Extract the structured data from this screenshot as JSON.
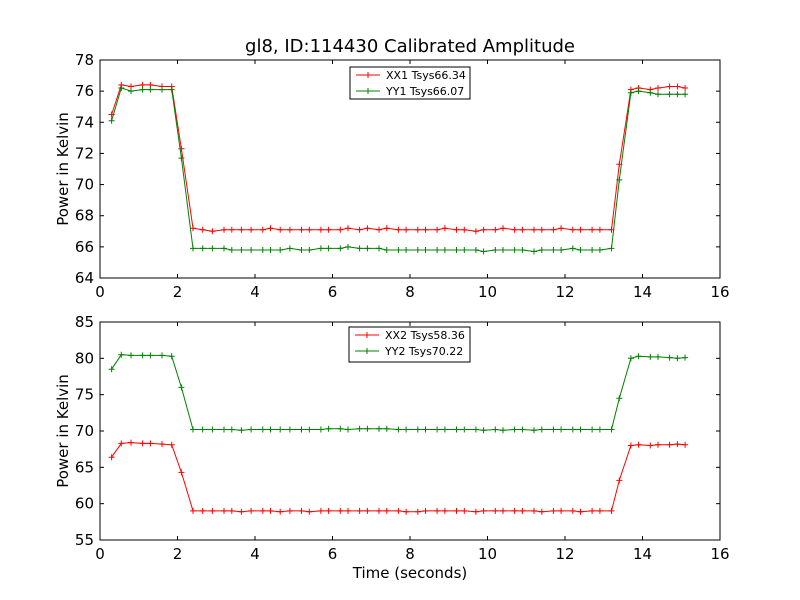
{
  "chart_data": {
    "title": "gl8, ID:114430 Calibrated Amplitude",
    "xlabel": "Time (seconds)",
    "subplots": [
      {
        "type": "line",
        "ylabel": "Power in Kelvin",
        "xlim": [
          0,
          16
        ],
        "ylim": [
          64,
          78
        ],
        "xticks": [
          "0",
          "2",
          "4",
          "6",
          "8",
          "10",
          "12",
          "14",
          "16"
        ],
        "yticks": [
          "64",
          "66",
          "68",
          "70",
          "72",
          "74",
          "76",
          "78"
        ],
        "legend_position": "upper center",
        "x": [
          0.3,
          0.55,
          0.8,
          1.1,
          1.3,
          1.6,
          1.85,
          2.1,
          2.4,
          2.65,
          2.9,
          3.2,
          3.4,
          3.65,
          3.9,
          4.2,
          4.4,
          4.65,
          4.9,
          5.2,
          5.4,
          5.7,
          5.9,
          6.2,
          6.4,
          6.7,
          6.9,
          7.2,
          7.4,
          7.7,
          7.9,
          8.2,
          8.4,
          8.7,
          8.9,
          9.2,
          9.4,
          9.7,
          9.9,
          10.2,
          10.4,
          10.7,
          10.9,
          11.2,
          11.4,
          11.7,
          11.9,
          12.2,
          12.4,
          12.7,
          12.9,
          13.2,
          13.4,
          13.7,
          13.9,
          14.2,
          14.4,
          14.7,
          14.9,
          15.1
        ],
        "series": [
          {
            "name": "XX1 Tsys66.34",
            "color": "#ff0000",
            "values": [
              74.5,
              76.4,
              76.3,
              76.4,
              76.4,
              76.3,
              76.3,
              72.3,
              67.2,
              67.1,
              67.0,
              67.1,
              67.1,
              67.1,
              67.1,
              67.1,
              67.2,
              67.1,
              67.1,
              67.1,
              67.1,
              67.1,
              67.1,
              67.1,
              67.2,
              67.1,
              67.2,
              67.1,
              67.2,
              67.1,
              67.1,
              67.1,
              67.1,
              67.1,
              67.2,
              67.1,
              67.1,
              67.0,
              67.1,
              67.1,
              67.2,
              67.1,
              67.1,
              67.1,
              67.1,
              67.1,
              67.2,
              67.1,
              67.1,
              67.1,
              67.1,
              67.1,
              71.3,
              76.1,
              76.2,
              76.1,
              76.2,
              76.3,
              76.3,
              76.2
            ]
          },
          {
            "name": "YY1 Tsys66.07",
            "color": "#008000",
            "values": [
              74.1,
              76.2,
              76.0,
              76.1,
              76.1,
              76.1,
              76.1,
              71.7,
              65.9,
              65.9,
              65.9,
              65.9,
              65.8,
              65.8,
              65.8,
              65.8,
              65.8,
              65.8,
              65.9,
              65.8,
              65.8,
              65.9,
              65.9,
              65.9,
              66.0,
              65.9,
              65.9,
              65.9,
              65.8,
              65.8,
              65.8,
              65.8,
              65.8,
              65.8,
              65.8,
              65.8,
              65.8,
              65.8,
              65.7,
              65.8,
              65.8,
              65.8,
              65.8,
              65.7,
              65.8,
              65.8,
              65.8,
              65.9,
              65.8,
              65.8,
              65.8,
              65.9,
              70.3,
              75.9,
              76.0,
              75.9,
              75.8,
              75.8,
              75.8,
              75.8
            ]
          }
        ]
      },
      {
        "type": "line",
        "ylabel": "Power in Kelvin",
        "xlabel": "Time (seconds)",
        "xlim": [
          0,
          16
        ],
        "ylim": [
          55,
          85
        ],
        "xticks": [
          "0",
          "2",
          "4",
          "6",
          "8",
          "10",
          "12",
          "14",
          "16"
        ],
        "yticks": [
          "55",
          "60",
          "65",
          "70",
          "75",
          "80",
          "85"
        ],
        "legend_position": "upper center",
        "x": [
          0.3,
          0.55,
          0.8,
          1.1,
          1.3,
          1.6,
          1.85,
          2.1,
          2.4,
          2.65,
          2.9,
          3.2,
          3.4,
          3.65,
          3.9,
          4.2,
          4.4,
          4.65,
          4.9,
          5.2,
          5.4,
          5.7,
          5.9,
          6.2,
          6.4,
          6.7,
          6.9,
          7.2,
          7.4,
          7.7,
          7.9,
          8.2,
          8.4,
          8.7,
          8.9,
          9.2,
          9.4,
          9.7,
          9.9,
          10.2,
          10.4,
          10.7,
          10.9,
          11.2,
          11.4,
          11.7,
          11.9,
          12.2,
          12.4,
          12.7,
          12.9,
          13.2,
          13.4,
          13.7,
          13.9,
          14.2,
          14.4,
          14.7,
          14.9,
          15.1
        ],
        "series": [
          {
            "name": "XX2 Tsys58.36",
            "color": "#ff0000",
            "values": [
              66.4,
              68.3,
              68.4,
              68.3,
              68.3,
              68.2,
              68.1,
              64.3,
              59.0,
              59.0,
              59.0,
              59.0,
              59.0,
              58.9,
              59.0,
              59.0,
              59.0,
              58.9,
              59.0,
              59.0,
              58.9,
              59.0,
              59.0,
              59.0,
              59.0,
              59.0,
              59.0,
              59.0,
              59.0,
              59.0,
              58.9,
              58.9,
              59.0,
              59.0,
              59.0,
              59.0,
              59.0,
              58.9,
              59.0,
              59.0,
              59.0,
              59.0,
              59.0,
              59.0,
              58.9,
              59.0,
              59.0,
              59.0,
              58.9,
              59.0,
              59.0,
              59.0,
              63.2,
              68.0,
              68.1,
              68.0,
              68.1,
              68.1,
              68.2,
              68.1
            ]
          },
          {
            "name": "YY2 Tsys70.22",
            "color": "#008000",
            "values": [
              78.5,
              80.5,
              80.4,
              80.4,
              80.4,
              80.4,
              80.3,
              76.0,
              70.2,
              70.2,
              70.2,
              70.2,
              70.2,
              70.1,
              70.2,
              70.2,
              70.2,
              70.2,
              70.2,
              70.2,
              70.2,
              70.2,
              70.3,
              70.3,
              70.2,
              70.3,
              70.3,
              70.3,
              70.3,
              70.2,
              70.2,
              70.2,
              70.2,
              70.2,
              70.2,
              70.2,
              70.2,
              70.2,
              70.1,
              70.2,
              70.1,
              70.2,
              70.2,
              70.1,
              70.2,
              70.2,
              70.2,
              70.2,
              70.2,
              70.2,
              70.2,
              70.2,
              74.5,
              80.0,
              80.3,
              80.2,
              80.2,
              80.1,
              80.0,
              80.1
            ]
          }
        ]
      }
    ]
  }
}
